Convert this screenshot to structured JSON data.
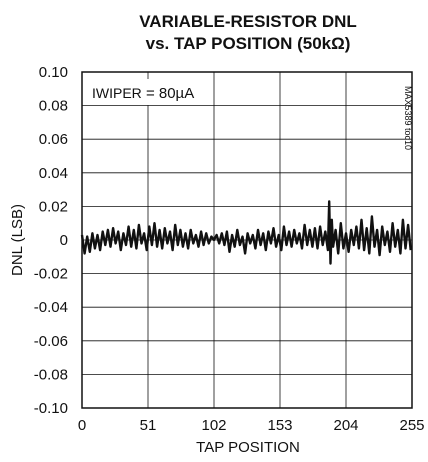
{
  "chart_data": {
    "type": "line",
    "title_line1": "VARIABLE-RESISTOR DNL",
    "title_line2": "vs. TAP POSITION (50kΩ)",
    "xlabel": "TAP POSITION",
    "ylabel": "DNL (LSB)",
    "xlim": [
      0,
      255
    ],
    "ylim": [
      -0.1,
      0.1
    ],
    "xticks": [
      "0",
      "51",
      "102",
      "153",
      "204",
      "255"
    ],
    "yticks": [
      "0.10",
      "0.08",
      "0.06",
      "0.04",
      "0.02",
      "0",
      "-0.02",
      "-0.04",
      "-0.06",
      "-0.08",
      "-0.10"
    ],
    "grid": true,
    "annotation_main": "IWIPER",
    "annotation_value": " = 80µA",
    "figure_code": "MAX5389 toc10",
    "series": [
      {
        "x": [
          0,
          2,
          4,
          6,
          8,
          10,
          12,
          14,
          16,
          18,
          20,
          22,
          24,
          26,
          28,
          30,
          32,
          34,
          36,
          38,
          40,
          42,
          44,
          46,
          48,
          50,
          52,
          54,
          56,
          58,
          60,
          62,
          64,
          66,
          68,
          70,
          72,
          74,
          76,
          78,
          80,
          82,
          84,
          86,
          88,
          90,
          92,
          94,
          96,
          98,
          100,
          102,
          104,
          106,
          108,
          110,
          112,
          114,
          116,
          118,
          120,
          122,
          124,
          126,
          128,
          130,
          132,
          134,
          136,
          138,
          140,
          142,
          144,
          146,
          148,
          150,
          152,
          154,
          156,
          158,
          160,
          162,
          164,
          166,
          168,
          170,
          172,
          174,
          176,
          178,
          180,
          182,
          184,
          186,
          188,
          190,
          191,
          192,
          193,
          194,
          196,
          198,
          200,
          202,
          204,
          206,
          208,
          210,
          212,
          214,
          216,
          218,
          220,
          222,
          224,
          226,
          228,
          230,
          232,
          234,
          236,
          238,
          240,
          242,
          244,
          246,
          248,
          250,
          252,
          254
        ],
        "y": [
          0.003,
          -0.008,
          0.002,
          -0.007,
          0.004,
          -0.005,
          0.003,
          -0.006,
          0.005,
          -0.003,
          0.006,
          -0.004,
          0.007,
          -0.002,
          0.005,
          -0.006,
          0.004,
          -0.003,
          0.008,
          -0.004,
          0.006,
          -0.005,
          0.009,
          -0.002,
          0.004,
          -0.006,
          0.008,
          -0.003,
          0.01,
          -0.004,
          0.006,
          -0.005,
          0.007,
          -0.002,
          0.005,
          -0.006,
          0.009,
          -0.003,
          0.006,
          -0.004,
          0.004,
          -0.005,
          0.006,
          -0.002,
          0.003,
          -0.004,
          0.005,
          -0.003,
          0.004,
          -0.002,
          0.002,
          0.0,
          0.003,
          -0.002,
          0.004,
          -0.003,
          0.005,
          -0.007,
          0.003,
          -0.004,
          0.006,
          -0.003,
          0.002,
          -0.008,
          0.004,
          -0.002,
          0.003,
          -0.005,
          0.006,
          -0.003,
          0.004,
          -0.006,
          0.005,
          -0.002,
          0.007,
          -0.004,
          0.003,
          -0.006,
          0.008,
          -0.003,
          0.005,
          -0.004,
          0.006,
          -0.002,
          0.004,
          -0.005,
          0.009,
          -0.003,
          0.006,
          -0.004,
          0.007,
          -0.005,
          0.008,
          -0.003,
          0.005,
          -0.006,
          0.023,
          -0.014,
          0.012,
          -0.004,
          0.006,
          -0.008,
          0.01,
          -0.005,
          0.004,
          -0.007,
          0.006,
          -0.003,
          0.008,
          -0.005,
          0.012,
          -0.006,
          0.007,
          -0.008,
          0.014,
          -0.004,
          0.006,
          -0.009,
          0.008,
          -0.003,
          0.005,
          -0.007,
          0.01,
          -0.004,
          0.006,
          -0.008,
          0.012,
          -0.005,
          0.009,
          -0.006
        ]
      }
    ]
  }
}
